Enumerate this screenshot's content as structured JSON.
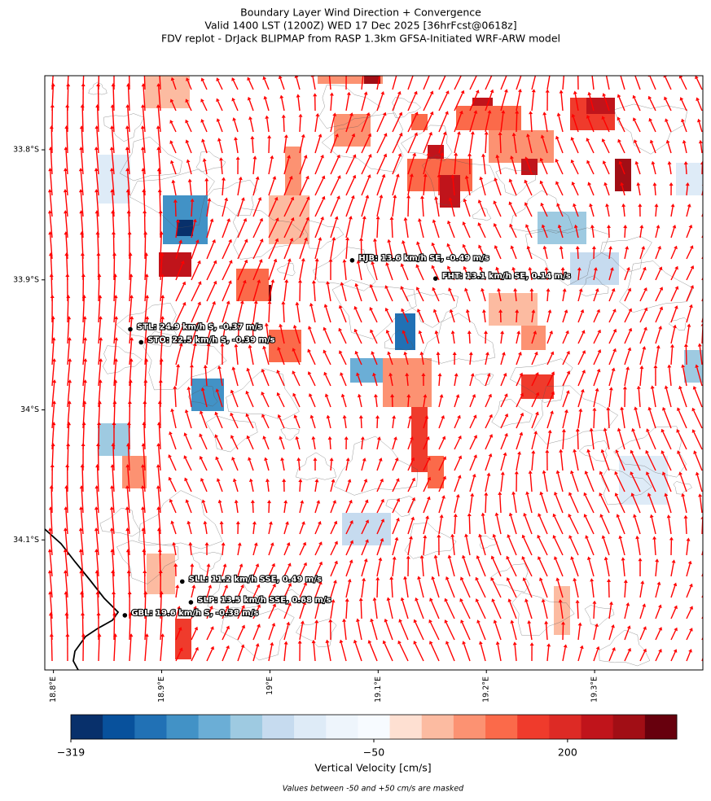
{
  "chart_data": {
    "type": "map",
    "title": [
      "Boundary Layer Wind Direction + Convergence",
      "Valid 1400 LST (1200Z) WED 17 Dec 2025 [36hrFcst@0618z]",
      "FDV replot - DrJack BLIPMAP from RASP 1.3km GFSA-Initiated WRF-ARW model"
    ],
    "xlim": [
      18.792,
      19.4
    ],
    "ylim": [
      -34.2,
      -33.743
    ],
    "xticks": [
      {
        "value": 18.8,
        "label": "18.8°E"
      },
      {
        "value": 18.9,
        "label": "18.9°E"
      },
      {
        "value": 19.0,
        "label": "19°E"
      },
      {
        "value": 19.1,
        "label": "19.1°E"
      },
      {
        "value": 19.2,
        "label": "19.2°E"
      },
      {
        "value": 19.3,
        "label": "19.3°E"
      }
    ],
    "yticks": [
      {
        "value": -33.8,
        "label": "33.8°S"
      },
      {
        "value": -33.9,
        "label": "33.9°S"
      },
      {
        "value": -34.0,
        "label": "34°S"
      },
      {
        "value": -34.1,
        "label": "34.1°S"
      }
    ],
    "stations": [
      {
        "label": "HJB: 13.6 km/h SE, -0.49 m/s",
        "lon": 19.076,
        "lat": -33.885
      },
      {
        "label": "FHT: 13.1 km/h SE, 0.14 m/s",
        "lon": 19.153,
        "lat": -33.899
      },
      {
        "label": "STL: 24.9 km/h S, -0.37 m/s",
        "lon": 18.871,
        "lat": -33.938
      },
      {
        "label": "STO: 22.5 km/h S, -0.39 m/s",
        "lon": 18.881,
        "lat": -33.948
      },
      {
        "label": "SLL: 11.2 km/h SSE, 0.49 m/s",
        "lon": 18.919,
        "lat": -34.132
      },
      {
        "label": "SLP: 13.5 km/h SSE, 0.68 m/s",
        "lon": 18.927,
        "lat": -34.148
      },
      {
        "label": "GBL: 19.6 km/h S, -0.38 m/s",
        "lon": 18.866,
        "lat": -34.158
      }
    ],
    "colorbar": {
      "label": "Vertical Velocity [cm/s]",
      "clim": [
        -319,
        341
      ],
      "vcenter": -50,
      "ticks": [
        {
          "value": -319,
          "label": "−319"
        },
        {
          "value": -50,
          "label": "−50"
        },
        200
      ],
      "colors": [
        "#08306b",
        "#08519c",
        "#2171b5",
        "#4292c6",
        "#6baed6",
        "#9ecae1",
        "#c6dbef",
        "#deebf7",
        "#eef5fc",
        "#f7fbff",
        "#fee0d2",
        "#fcbba1",
        "#fc9272",
        "#fb6a4a",
        "#ef3b2c",
        "#dd2a25",
        "#c0141b",
        "#a10e15",
        "#67000d"
      ]
    },
    "note": "Values between -50 and +50 cm/s are masked"
  }
}
